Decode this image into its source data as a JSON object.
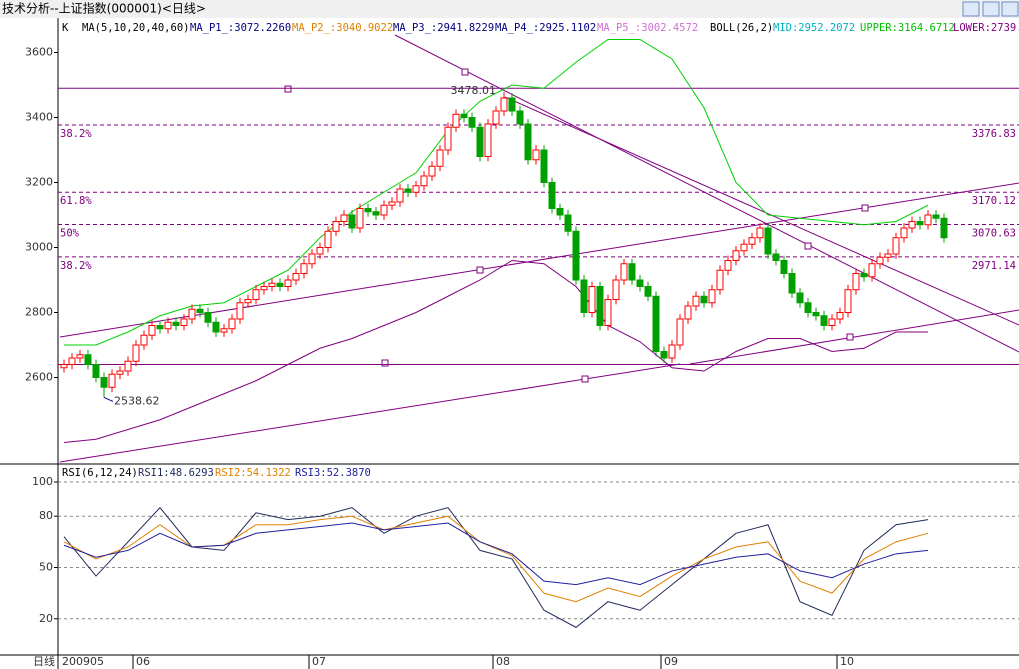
{
  "window": {
    "title": "技术分析--上证指数(000001)<日线>"
  },
  "x_axis": {
    "period": "日线",
    "start": "200905",
    "months": [
      "06",
      "07",
      "08",
      "09",
      "10"
    ]
  },
  "chart_data": [
    {
      "type": "candlestick",
      "header": [
        {
          "text": "K",
          "color": "#000000"
        },
        {
          "text": "MA(5,10,20,40,60)",
          "color": "#000000"
        },
        {
          "text": "MA_P1_:3072.2260",
          "color": "#000080"
        },
        {
          "text": "MA_P2_:3040.9022",
          "color": "#e08000"
        },
        {
          "text": "MA_P3_:2941.8229",
          "color": "#000080"
        },
        {
          "text": "MA_P4_:2925.1102",
          "color": "#000080"
        },
        {
          "text": "MA_P5_:3002.4572",
          "color": "#d070d0"
        },
        {
          "text": "BOLL(26,2)",
          "color": "#000000"
        },
        {
          "text": "MID:2952.2072",
          "color": "#00b0c0"
        },
        {
          "text": "UPPER:3164.6712",
          "color": "#00c000"
        },
        {
          "text": "LOWER:2739.",
          "color": "#800080"
        }
      ],
      "ylim": [
        2340,
        3700
      ],
      "yticks": [
        2600,
        2800,
        3000,
        3200,
        3400,
        3600
      ],
      "up_color": "#ff0000",
      "down_color": "#00a000",
      "open": [
        2630,
        2640,
        2660,
        2670,
        2640,
        2600,
        2570,
        2610,
        2620,
        2650,
        2700,
        2730,
        2760,
        2750,
        2770,
        2760,
        2780,
        2810,
        2800,
        2770,
        2740,
        2750,
        2780,
        2830,
        2840,
        2870,
        2880,
        2890,
        2880,
        2900,
        2920,
        2950,
        2980,
        3000,
        3050,
        3080,
        3100,
        3060,
        3120,
        3110,
        3100,
        3130,
        3140,
        3180,
        3170,
        3190,
        3220,
        3250,
        3300,
        3370,
        3410,
        3400,
        3370,
        3280,
        3380,
        3420,
        3460,
        3420,
        3380,
        3270,
        3300,
        3200,
        3120,
        3100,
        3050,
        2900,
        2800,
        2880,
        2760,
        2840,
        2900,
        2950,
        2900,
        2880,
        2850,
        2680,
        2660,
        2700,
        2780,
        2820,
        2850,
        2830,
        2870,
        2930,
        2960,
        2990,
        3010,
        3030,
        3060,
        2980,
        2960,
        2920,
        2860,
        2830,
        2800,
        2790,
        2760,
        2780,
        2800,
        2870,
        2920,
        2910,
        2950,
        2970,
        2980,
        3030,
        3060,
        3080,
        3070,
        3100,
        3090
      ],
      "high": [
        2655,
        2675,
        2685,
        2685,
        2655,
        2615,
        2625,
        2635,
        2665,
        2715,
        2745,
        2775,
        2775,
        2785,
        2785,
        2795,
        2825,
        2825,
        2815,
        2785,
        2765,
        2795,
        2845,
        2855,
        2885,
        2895,
        2905,
        2905,
        2915,
        2935,
        2965,
        2995,
        3015,
        3065,
        3095,
        3115,
        3115,
        3135,
        3135,
        3125,
        3145,
        3155,
        3195,
        3195,
        3205,
        3235,
        3265,
        3315,
        3385,
        3425,
        3425,
        3415,
        3385,
        3395,
        3435,
        3478.01,
        3475,
        3435,
        3395,
        3315,
        3315,
        3215,
        3135,
        3115,
        3065,
        2915,
        2895,
        2895,
        2855,
        2915,
        2965,
        2965,
        2915,
        2895,
        2865,
        2695,
        2715,
        2795,
        2835,
        2865,
        2865,
        2885,
        2945,
        2975,
        3005,
        3025,
        3045,
        3075,
        3075,
        2995,
        2975,
        2935,
        2875,
        2845,
        2815,
        2805,
        2795,
        2815,
        2885,
        2935,
        2935,
        2965,
        2985,
        2995,
        3045,
        3075,
        3095,
        3095,
        3115,
        3115,
        3105
      ],
      "low": [
        2615,
        2625,
        2645,
        2625,
        2585,
        2538.62,
        2555,
        2595,
        2605,
        2635,
        2685,
        2715,
        2735,
        2735,
        2745,
        2745,
        2765,
        2785,
        2755,
        2725,
        2725,
        2735,
        2765,
        2815,
        2825,
        2855,
        2865,
        2865,
        2865,
        2885,
        2905,
        2935,
        2965,
        2985,
        3035,
        3065,
        3045,
        3045,
        3095,
        3085,
        3085,
        3115,
        3125,
        3155,
        3155,
        3175,
        3205,
        3235,
        3285,
        3355,
        3385,
        3355,
        3265,
        3265,
        3365,
        3405,
        3405,
        3365,
        3255,
        3255,
        3185,
        3105,
        3085,
        3035,
        2885,
        2785,
        2785,
        2745,
        2745,
        2825,
        2885,
        2885,
        2865,
        2835,
        2665,
        2645,
        2645,
        2685,
        2765,
        2805,
        2815,
        2815,
        2855,
        2915,
        2945,
        2975,
        2995,
        3015,
        2965,
        2945,
        2905,
        2845,
        2815,
        2785,
        2775,
        2745,
        2745,
        2765,
        2785,
        2855,
        2895,
        2895,
        2935,
        2955,
        2965,
        3015,
        3045,
        3055,
        3055,
        3075,
        3015
      ],
      "close": [
        2640,
        2660,
        2670,
        2640,
        2600,
        2570,
        2610,
        2620,
        2650,
        2700,
        2730,
        2760,
        2750,
        2770,
        2760,
        2780,
        2810,
        2800,
        2770,
        2740,
        2750,
        2780,
        2830,
        2840,
        2870,
        2880,
        2890,
        2880,
        2900,
        2920,
        2950,
        2980,
        3000,
        3050,
        3080,
        3100,
        3060,
        3120,
        3110,
        3100,
        3130,
        3140,
        3180,
        3170,
        3190,
        3220,
        3250,
        3300,
        3370,
        3410,
        3400,
        3370,
        3280,
        3380,
        3420,
        3460,
        3420,
        3380,
        3270,
        3300,
        3200,
        3120,
        3100,
        3050,
        2900,
        2800,
        2880,
        2760,
        2840,
        2900,
        2950,
        2900,
        2880,
        2850,
        2680,
        2660,
        2700,
        2780,
        2820,
        2850,
        2830,
        2870,
        2930,
        2960,
        2990,
        3010,
        3030,
        3060,
        2980,
        2960,
        2920,
        2860,
        2830,
        2800,
        2790,
        2760,
        2780,
        2800,
        2870,
        2920,
        2910,
        2950,
        2970,
        2980,
        3030,
        3060,
        3080,
        3070,
        3100,
        3090,
        3030
      ],
      "series": [
        {
          "color": "#00d000",
          "values": [
            2700,
            2700,
            2740,
            2790,
            2820,
            2830,
            2880,
            2930,
            3030,
            3110,
            3170,
            3230,
            3360,
            3450,
            3500,
            3490,
            3570,
            3640,
            3640,
            3580,
            3430,
            3200,
            3100,
            3090,
            3080,
            3070,
            3080,
            3130
          ]
        },
        {
          "color": "#800080",
          "values": [
            2400,
            2410,
            2440,
            2470,
            2510,
            2550,
            2590,
            2640,
            2690,
            2720,
            2760,
            2800,
            2850,
            2900,
            2960,
            2950,
            2880,
            2760,
            2710,
            2630,
            2620,
            2680,
            2720,
            2720,
            2680,
            2690,
            2740,
            2740
          ]
        }
      ],
      "hlines": [
        3490,
        2640
      ],
      "fib_levels": [
        {
          "ratio": "38.2%",
          "value": 3376.83
        },
        {
          "ratio": "61.8%",
          "value": 3170.12
        },
        {
          "ratio": "50%",
          "value": 3070.63
        },
        {
          "ratio": "38.2%",
          "value": 2971.14
        }
      ]
    },
    {
      "type": "line",
      "header": [
        {
          "text": "RSI(6,12,24)",
          "color": "#000000"
        }
      ],
      "ylim": [
        0,
        100
      ],
      "yticks": [
        20,
        50,
        80,
        100
      ],
      "grid": true,
      "series": [
        {
          "name": "RSI1:48.6293",
          "color": "#1f2a5a",
          "values": [
            68,
            45,
            65,
            85,
            62,
            60,
            82,
            78,
            80,
            85,
            70,
            80,
            85,
            60,
            55,
            25,
            15,
            30,
            25,
            40,
            55,
            70,
            75,
            30,
            22,
            60,
            75,
            78
          ]
        },
        {
          "name": "RSI2:54.1322",
          "color": "#e08000",
          "values": [
            65,
            55,
            62,
            75,
            62,
            63,
            75,
            75,
            78,
            80,
            72,
            76,
            80,
            65,
            57,
            35,
            30,
            38,
            33,
            45,
            55,
            62,
            65,
            42,
            35,
            55,
            65,
            70
          ]
        },
        {
          "name": "RSI3:52.3870",
          "color": "#2020a0",
          "values": [
            63,
            56,
            60,
            70,
            62,
            63,
            70,
            72,
            74,
            76,
            72,
            74,
            76,
            65,
            58,
            42,
            40,
            44,
            40,
            48,
            52,
            56,
            58,
            48,
            44,
            52,
            58,
            60
          ]
        }
      ]
    }
  ]
}
